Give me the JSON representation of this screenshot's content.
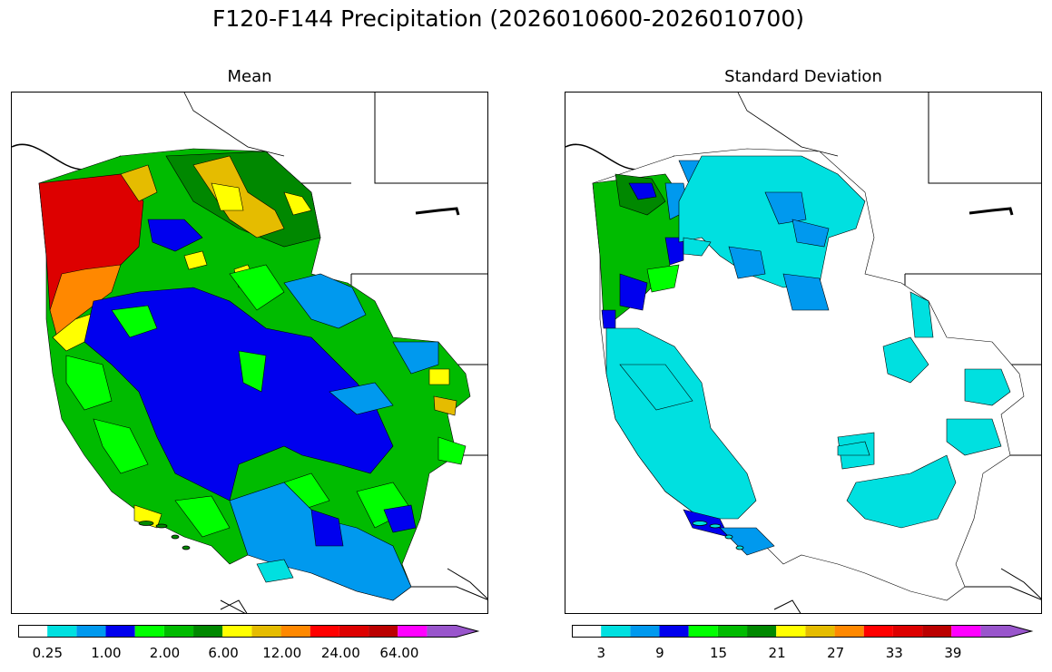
{
  "figure": {
    "title": "F120-F144 Precipitation (2026010600-2026010700)"
  },
  "panels": [
    {
      "subtitle": "Mean",
      "colorbar": {
        "colors": [
          "#ffffff",
          "#00e0e0",
          "#0099ee",
          "#0000ee",
          "#00ff00",
          "#00bb00",
          "#008800",
          "#ffff00",
          "#e5bc00",
          "#ff8800",
          "#ff0000",
          "#dd0000",
          "#bb0000",
          "#ff00ff",
          "#9955cc"
        ],
        "labels": [
          "0.25",
          "1.00",
          "2.00",
          "6.00",
          "12.00",
          "24.00",
          "64.00"
        ]
      }
    },
    {
      "subtitle": "Standard Deviation",
      "colorbar": {
        "colors": [
          "#ffffff",
          "#00e0e0",
          "#0099ee",
          "#0000ee",
          "#00ff00",
          "#00bb00",
          "#008800",
          "#ffff00",
          "#e5bc00",
          "#ff8800",
          "#ff0000",
          "#dd0000",
          "#bb0000",
          "#ff00ff",
          "#9955cc"
        ],
        "labels": [
          "3",
          "9",
          "15",
          "21",
          "27",
          "33",
          "39"
        ]
      }
    }
  ]
}
